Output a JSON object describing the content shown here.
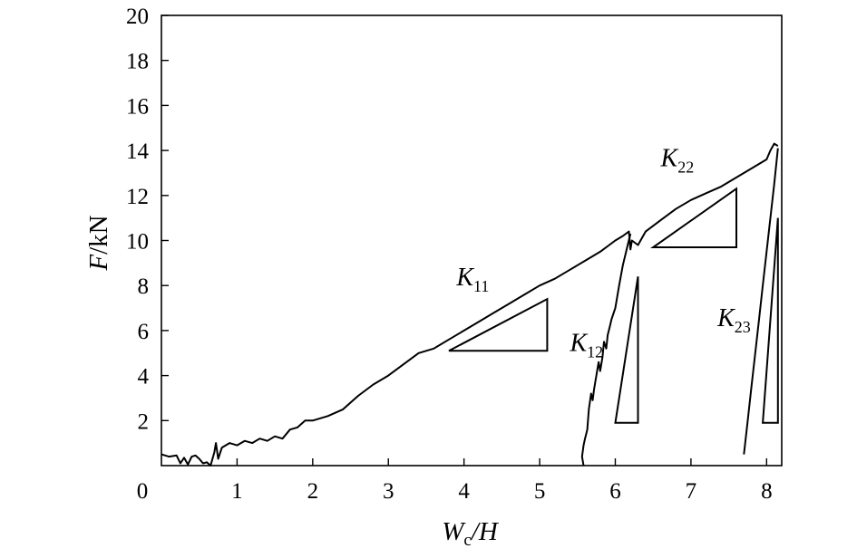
{
  "chart_data": {
    "type": "line",
    "title": "",
    "xlabel": {
      "main": "W",
      "sub": "c",
      "rest": "/H"
    },
    "ylabel": {
      "main": "F",
      "rest": "/kN"
    },
    "xlim": [
      0,
      8.2
    ],
    "ylim": [
      0,
      20
    ],
    "xticks": [
      0,
      1,
      2,
      3,
      4,
      5,
      6,
      7,
      8
    ],
    "yticks": [
      2,
      4,
      6,
      8,
      10,
      12,
      14,
      16,
      18,
      20
    ],
    "origin_label": "0",
    "grid": false,
    "legend": "none",
    "series": [
      {
        "points": [
          [
            0,
            0.5
          ],
          [
            0.1,
            0.4
          ],
          [
            0.2,
            0.45
          ],
          [
            0.25,
            0.1
          ],
          [
            0.3,
            0.35
          ],
          [
            0.35,
            0.05
          ],
          [
            0.4,
            0.4
          ],
          [
            0.45,
            0.45
          ],
          [
            0.5,
            0.3
          ],
          [
            0.55,
            0.1
          ],
          [
            0.6,
            0.15
          ],
          [
            0.65,
            0.0
          ],
          [
            0.7,
            0.6
          ],
          [
            0.72,
            1.0
          ],
          [
            0.75,
            0.3
          ],
          [
            0.8,
            0.8
          ],
          [
            0.9,
            1.0
          ],
          [
            1.0,
            0.9
          ],
          [
            1.1,
            1.1
          ],
          [
            1.2,
            1.0
          ],
          [
            1.3,
            1.2
          ],
          [
            1.4,
            1.1
          ],
          [
            1.5,
            1.3
          ],
          [
            1.6,
            1.2
          ],
          [
            1.7,
            1.6
          ],
          [
            1.8,
            1.7
          ],
          [
            1.9,
            2.0
          ],
          [
            2.0,
            2.0
          ],
          [
            2.2,
            2.2
          ],
          [
            2.4,
            2.5
          ],
          [
            2.6,
            3.1
          ],
          [
            2.8,
            3.6
          ],
          [
            3.0,
            4.0
          ],
          [
            3.2,
            4.5
          ],
          [
            3.4,
            5.0
          ],
          [
            3.6,
            5.2
          ],
          [
            3.8,
            5.6
          ],
          [
            4.0,
            6.0
          ],
          [
            4.2,
            6.4
          ],
          [
            4.4,
            6.8
          ],
          [
            4.6,
            7.2
          ],
          [
            4.8,
            7.6
          ],
          [
            5.0,
            8.0
          ],
          [
            5.2,
            8.3
          ],
          [
            5.4,
            8.7
          ],
          [
            5.6,
            9.1
          ],
          [
            5.8,
            9.5
          ],
          [
            6.0,
            10.0
          ],
          [
            6.1,
            10.2
          ],
          [
            6.18,
            10.4
          ],
          [
            6.2,
            9.6
          ],
          [
            6.22,
            10.0
          ],
          [
            6.3,
            9.8
          ],
          [
            6.4,
            10.4
          ],
          [
            6.6,
            10.9
          ],
          [
            6.8,
            11.4
          ],
          [
            7.0,
            11.8
          ],
          [
            7.2,
            12.1
          ],
          [
            7.4,
            12.4
          ],
          [
            7.6,
            12.8
          ],
          [
            7.8,
            13.2
          ],
          [
            8.0,
            13.6
          ],
          [
            8.05,
            14.0
          ],
          [
            8.1,
            14.3
          ],
          [
            8.15,
            14.2
          ]
        ]
      },
      {
        "points": [
          [
            6.2,
            10.3
          ],
          [
            6.15,
            9.6
          ],
          [
            6.1,
            8.9
          ],
          [
            6.05,
            8.0
          ],
          [
            6.0,
            7.0
          ],
          [
            5.95,
            6.5
          ],
          [
            5.93,
            6.2
          ],
          [
            5.9,
            5.8
          ],
          [
            5.88,
            5.2
          ],
          [
            5.85,
            5.5
          ],
          [
            5.83,
            4.8
          ],
          [
            5.8,
            4.2
          ],
          [
            5.78,
            4.6
          ],
          [
            5.75,
            4.0
          ],
          [
            5.72,
            3.4
          ],
          [
            5.7,
            2.9
          ],
          [
            5.68,
            3.2
          ],
          [
            5.65,
            2.5
          ],
          [
            5.63,
            1.6
          ],
          [
            5.6,
            1.2
          ],
          [
            5.58,
            0.9
          ],
          [
            5.56,
            0.4
          ],
          [
            5.58,
            0.0
          ]
        ]
      },
      {
        "points": [
          [
            8.15,
            14.1
          ],
          [
            8.1,
            12.5
          ],
          [
            8.05,
            11.0
          ],
          [
            8.0,
            9.5
          ],
          [
            7.95,
            8.0
          ],
          [
            7.9,
            6.5
          ],
          [
            7.85,
            5.0
          ],
          [
            7.8,
            3.5
          ],
          [
            7.75,
            2.0
          ],
          [
            7.7,
            0.5
          ]
        ]
      }
    ],
    "stiffness_triangles": [
      {
        "points": [
          [
            3.8,
            5.1
          ],
          [
            5.1,
            5.1
          ],
          [
            5.1,
            7.4
          ]
        ]
      },
      {
        "points": [
          [
            6.0,
            1.9
          ],
          [
            6.3,
            1.9
          ],
          [
            6.3,
            8.4
          ]
        ]
      },
      {
        "points": [
          [
            6.5,
            9.7
          ],
          [
            7.6,
            9.7
          ],
          [
            7.6,
            12.3
          ]
        ]
      },
      {
        "points": [
          [
            7.95,
            1.9
          ],
          [
            8.15,
            1.9
          ],
          [
            8.15,
            11.0
          ]
        ]
      }
    ],
    "annotations": [
      {
        "main": "K",
        "sub": "11",
        "x": 3.9,
        "y": 8.0
      },
      {
        "main": "K",
        "sub": "12",
        "x": 5.4,
        "y": 5.1
      },
      {
        "main": "K",
        "sub": "22",
        "x": 6.6,
        "y": 13.3
      },
      {
        "main": "K",
        "sub": "23",
        "x": 7.35,
        "y": 6.2
      }
    ]
  }
}
